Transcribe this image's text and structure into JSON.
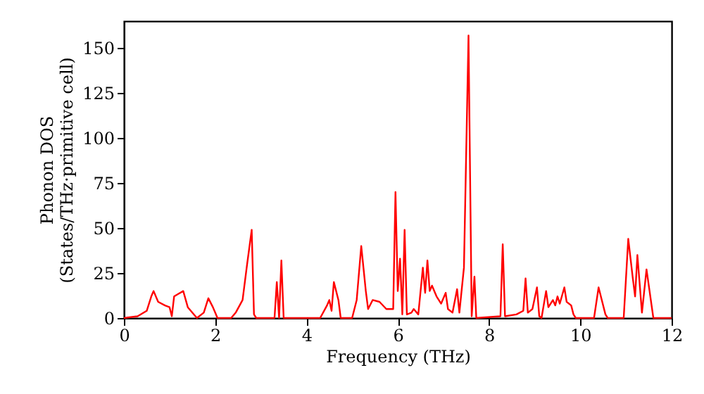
{
  "chart_data": {
    "type": "line",
    "xlabel": "Frequency (THz)",
    "ylabel": "Phonon DOS\n(States/THz·primitive cell)",
    "xlim": [
      0,
      12
    ],
    "xticks": [
      0,
      2,
      4,
      6,
      8,
      10,
      12
    ],
    "ylim": [
      0,
      165
    ],
    "yticks": [
      0,
      25,
      50,
      75,
      100,
      125,
      150
    ],
    "grid": false,
    "series": [
      {
        "color": "#ff0000",
        "x": [
          0,
          0.3,
          0.5,
          0.6,
          0.65,
          0.75,
          0.9,
          1.0,
          1.05,
          1.1,
          1.3,
          1.4,
          1.6,
          1.75,
          1.85,
          1.95,
          2.0,
          2.05,
          2.35,
          2.45,
          2.6,
          2.7,
          2.8,
          2.85,
          2.9,
          3.3,
          3.35,
          3.4,
          3.45,
          3.5,
          4.3,
          4.45,
          4.5,
          4.55,
          4.6,
          4.7,
          4.75,
          5.0,
          5.1,
          5.2,
          5.3,
          5.35,
          5.45,
          5.6,
          5.75,
          5.9,
          5.95,
          6.0,
          6.05,
          6.1,
          6.15,
          6.2,
          6.3,
          6.35,
          6.45,
          6.55,
          6.6,
          6.65,
          6.7,
          6.75,
          6.85,
          6.95,
          7.05,
          7.1,
          7.2,
          7.3,
          7.35,
          7.45,
          7.55,
          7.62,
          7.68,
          7.72,
          8.25,
          8.3,
          8.35,
          8.6,
          8.75,
          8.8,
          8.85,
          8.95,
          9.05,
          9.1,
          9.15,
          9.25,
          9.3,
          9.4,
          9.45,
          9.5,
          9.55,
          9.65,
          9.7,
          9.8,
          9.85,
          9.9,
          10.3,
          10.4,
          10.55,
          10.6,
          10.95,
          11.05,
          11.15,
          11.2,
          11.25,
          11.35,
          11.45,
          11.6,
          12
        ],
        "values": [
          0,
          1,
          4,
          12,
          15,
          9,
          7,
          6,
          1,
          12,
          15,
          6,
          0,
          3,
          11,
          6,
          3,
          0,
          0,
          3,
          10,
          30,
          49,
          2,
          0,
          0,
          20,
          0,
          32,
          0,
          0,
          7,
          10,
          4,
          20,
          10,
          0,
          0,
          10,
          40,
          15,
          5,
          10,
          9,
          5,
          5,
          70,
          15,
          33,
          2,
          49,
          2,
          3,
          5,
          2,
          28,
          14,
          32,
          15,
          18,
          12,
          8,
          14,
          5,
          3,
          16,
          3,
          28,
          157,
          1,
          23,
          0,
          1,
          41,
          1,
          2,
          4,
          22,
          3,
          5,
          17,
          1,
          0,
          15,
          6,
          10,
          7,
          12,
          8,
          17,
          9,
          7,
          2,
          0,
          0,
          17,
          2,
          0,
          0,
          44,
          22,
          12,
          35,
          3,
          27,
          0,
          0
        ]
      }
    ]
  }
}
